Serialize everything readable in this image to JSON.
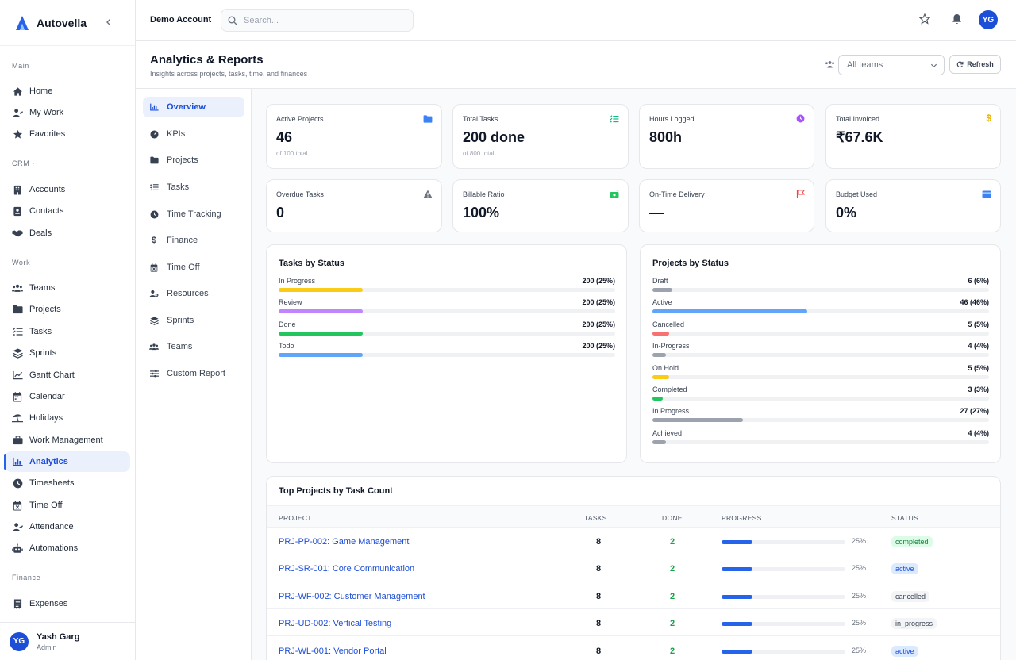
{
  "brand": {
    "name": "Autovella"
  },
  "sidebar": {
    "sections": [
      {
        "label": "Main ·",
        "items": [
          {
            "label": "Home",
            "icon": "home-icon"
          },
          {
            "label": "My Work",
            "icon": "user-check-icon"
          },
          {
            "label": "Favorites",
            "icon": "star-icon"
          }
        ]
      },
      {
        "label": "CRM ·",
        "items": [
          {
            "label": "Accounts",
            "icon": "building-icon"
          },
          {
            "label": "Contacts",
            "icon": "contact-card-icon"
          },
          {
            "label": "Deals",
            "icon": "handshake-icon"
          }
        ]
      },
      {
        "label": "Work ·",
        "items": [
          {
            "label": "Teams",
            "icon": "users-icon"
          },
          {
            "label": "Projects",
            "icon": "folder-icon"
          },
          {
            "label": "Tasks",
            "icon": "list-check-icon"
          },
          {
            "label": "Sprints",
            "icon": "layers-icon"
          },
          {
            "label": "Gantt Chart",
            "icon": "gantt-icon"
          },
          {
            "label": "Calendar",
            "icon": "calendar-icon"
          },
          {
            "label": "Holidays",
            "icon": "umbrella-beach-icon"
          },
          {
            "label": "Work Management",
            "icon": "briefcase-icon"
          },
          {
            "label": "Analytics",
            "icon": "chart-icon",
            "active": true
          },
          {
            "label": "Timesheets",
            "icon": "clock-icon"
          },
          {
            "label": "Time Off",
            "icon": "calendar-off-icon"
          },
          {
            "label": "Attendance",
            "icon": "user-check-icon"
          },
          {
            "label": "Automations",
            "icon": "robot-icon"
          }
        ]
      },
      {
        "label": "Finance ·",
        "items": [
          {
            "label": "Expenses",
            "icon": "receipt-icon"
          }
        ]
      }
    ]
  },
  "user": {
    "initials": "YG",
    "name": "Yash Garg",
    "role": "Admin"
  },
  "topbar": {
    "account": "Demo Account",
    "search_placeholder": "Search..."
  },
  "page": {
    "title": "Analytics & Reports",
    "subtitle": "Insights across projects, tasks, time, and finances"
  },
  "filters": {
    "team_select": "All teams",
    "refresh_label": "Refresh"
  },
  "subnav": [
    {
      "label": "Overview",
      "icon": "chart-icon",
      "active": true
    },
    {
      "label": "KPIs",
      "icon": "gauge-icon"
    },
    {
      "label": "Projects",
      "icon": "folder-icon"
    },
    {
      "label": "Tasks",
      "icon": "list-check-icon"
    },
    {
      "label": "Time Tracking",
      "icon": "clock-icon"
    },
    {
      "label": "Finance",
      "icon": "dollar-icon"
    },
    {
      "label": "Time Off",
      "icon": "calendar-off-icon"
    },
    {
      "label": "Resources",
      "icon": "users-cog-icon"
    },
    {
      "label": "Sprints",
      "icon": "layers-icon"
    },
    {
      "label": "Teams",
      "icon": "users-icon"
    },
    {
      "label": "Custom Report",
      "icon": "sliders-icon"
    }
  ],
  "kpis": [
    {
      "label": "Active Projects",
      "value": "46",
      "sub": "of 100 total",
      "icon": "folder-icon",
      "color": "#3b82f6"
    },
    {
      "label": "Total Tasks",
      "value": "200 done",
      "sub": "of 800 total",
      "icon": "list-check-icon",
      "color": "#10b981"
    },
    {
      "label": "Hours Logged",
      "value": "800h",
      "sub": "",
      "icon": "clock-icon",
      "color": "#a855f7"
    },
    {
      "label": "Total Invoiced",
      "value": "₹67.6K",
      "sub": "",
      "icon": "dollar-icon",
      "color": "#eab308"
    },
    {
      "label": "Overdue Tasks",
      "value": "0",
      "sub": "",
      "icon": "warning-icon",
      "color": "#6b7280"
    },
    {
      "label": "Billable Ratio",
      "value": "100%",
      "sub": "",
      "icon": "money-icon",
      "color": "#22c55e"
    },
    {
      "label": "On-Time Delivery",
      "value": "—",
      "sub": "",
      "icon": "flag-icon",
      "color": "#ef4444"
    },
    {
      "label": "Budget Used",
      "value": "0%",
      "sub": "",
      "icon": "wallet-icon",
      "color": "#3b82f6"
    }
  ],
  "tasks_by_status": {
    "title": "Tasks by Status",
    "rows": [
      {
        "label": "In Progress",
        "value": "200 (25%)",
        "pct": 25,
        "color": "#facc15"
      },
      {
        "label": "Review",
        "value": "200 (25%)",
        "pct": 25,
        "color": "#c084fc"
      },
      {
        "label": "Done",
        "value": "200 (25%)",
        "pct": 25,
        "color": "#22c55e"
      },
      {
        "label": "Todo",
        "value": "200 (25%)",
        "pct": 25,
        "color": "#60a5fa"
      }
    ]
  },
  "projects_by_status": {
    "title": "Projects by Status",
    "rows": [
      {
        "label": "Draft",
        "value": "6 (6%)",
        "pct": 6,
        "color": "#9ca3af"
      },
      {
        "label": "Active",
        "value": "46 (46%)",
        "pct": 46,
        "color": "#60a5fa"
      },
      {
        "label": "Cancelled",
        "value": "5 (5%)",
        "pct": 5,
        "color": "#f87171"
      },
      {
        "label": "In-Progress",
        "value": "4 (4%)",
        "pct": 4,
        "color": "#9ca3af"
      },
      {
        "label": "On Hold",
        "value": "5 (5%)",
        "pct": 5,
        "color": "#facc15"
      },
      {
        "label": "Completed",
        "value": "3 (3%)",
        "pct": 3,
        "color": "#22c55e"
      },
      {
        "label": "In Progress",
        "value": "27 (27%)",
        "pct": 27,
        "color": "#9ca3af"
      },
      {
        "label": "Achieved",
        "value": "4 (4%)",
        "pct": 4,
        "color": "#9ca3af"
      }
    ]
  },
  "top_projects": {
    "title": "Top Projects by Task Count",
    "columns": {
      "project": "PROJECT",
      "tasks": "TASKS",
      "done": "DONE",
      "progress": "PROGRESS",
      "status": "STATUS"
    },
    "rows": [
      {
        "name": "PRJ-PP-002: Game Management",
        "tasks": "8",
        "done": "2",
        "progress": "25%",
        "pct": 25,
        "status": "completed"
      },
      {
        "name": "PRJ-SR-001: Core Communication",
        "tasks": "8",
        "done": "2",
        "progress": "25%",
        "pct": 25,
        "status": "active"
      },
      {
        "name": "PRJ-WF-002: Customer Management",
        "tasks": "8",
        "done": "2",
        "progress": "25%",
        "pct": 25,
        "status": "cancelled"
      },
      {
        "name": "PRJ-UD-002: Vertical Testing",
        "tasks": "8",
        "done": "2",
        "progress": "25%",
        "pct": 25,
        "status": "in_progress"
      },
      {
        "name": "PRJ-WL-001: Vendor Portal",
        "tasks": "8",
        "done": "2",
        "progress": "25%",
        "pct": 25,
        "status": "active"
      }
    ]
  }
}
